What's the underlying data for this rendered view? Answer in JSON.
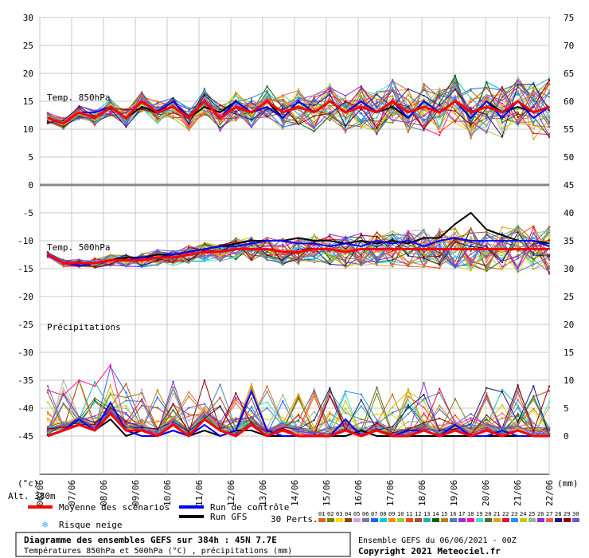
{
  "chart_data": {
    "type": "line",
    "title": "Diagramme des ensembles GEFS sur 384h : 45N 7.7E",
    "subtitle": "Températures 850hPa et 500hPa (°C) , précipitations (mm)",
    "x_unit": "(°c)",
    "x_unit_right": "(mm)",
    "altitude": "Alt. 380m",
    "dates": [
      "06/06",
      "07/06",
      "08/06",
      "09/06",
      "10/06",
      "11/06",
      "12/06",
      "13/06",
      "14/06",
      "15/06",
      "16/06",
      "17/06",
      "18/06",
      "19/06",
      "20/06",
      "21/06",
      "22/06"
    ],
    "left_axis": {
      "ticks": [
        30,
        25,
        20,
        15,
        10,
        5,
        0,
        -5,
        -10,
        -15,
        -20,
        -25,
        -30,
        -35,
        -40,
        -45
      ],
      "range": [
        -45,
        30
      ]
    },
    "right_axis_temp850": {
      "ticks": [
        75,
        70,
        65,
        60,
        55,
        50
      ],
      "range": [
        45,
        75
      ]
    },
    "right_axis_temp500": {
      "ticks": [
        45,
        40,
        35,
        30,
        25
      ],
      "range": [
        20,
        45
      ]
    },
    "right_axis_precip": {
      "ticks": [
        20,
        15,
        10,
        5,
        0
      ],
      "range": [
        0,
        20
      ]
    },
    "panel_labels": {
      "t850": "Temp. 850hPa",
      "t500": "Temp. 500hPa",
      "precip": "Précipitations"
    },
    "series_mean": {
      "name": "Moyenne des scénarios",
      "t850": [
        12,
        11,
        13,
        12,
        14,
        12,
        15,
        13,
        14,
        12,
        15,
        12,
        14,
        13,
        15,
        13,
        14,
        13,
        15,
        13,
        14,
        13,
        15,
        13,
        14,
        13,
        15,
        13,
        14,
        13,
        15,
        13,
        14
      ],
      "t500": [
        -12.5,
        -14,
        -14,
        -14,
        -13.5,
        -13.5,
        -13.5,
        -13,
        -13,
        -12.5,
        -12,
        -12,
        -11.5,
        -11.5,
        -11.5,
        -12,
        -12,
        -11.5,
        -11.5,
        -12,
        -11.5,
        -11.5,
        -11.5,
        -11.5,
        -11.5,
        -11.5,
        -11.5,
        -11.5,
        -11.5,
        -11.5,
        -11.5,
        -11.5,
        -11.5
      ],
      "precip": [
        0,
        1,
        2,
        1,
        4,
        1,
        1,
        0,
        2,
        0,
        3,
        1,
        0,
        2,
        0,
        1,
        0,
        0,
        0,
        1,
        0,
        1,
        0,
        0,
        1,
        0,
        1,
        0,
        1,
        0,
        1,
        0,
        0
      ]
    },
    "series_control": {
      "name": "Run de contrôle",
      "t850": [
        12,
        11,
        13,
        13,
        14,
        12,
        15,
        13,
        15,
        12,
        15,
        12,
        15,
        13,
        14,
        12,
        15,
        13,
        15,
        13,
        15,
        13,
        15,
        12,
        15,
        13,
        15,
        12,
        15,
        12,
        15,
        12,
        14
      ],
      "t500": [
        -12.5,
        -14,
        -14.5,
        -14,
        -13.5,
        -13.5,
        -13,
        -13,
        -12.5,
        -12,
        -11.5,
        -11,
        -11,
        -10.5,
        -10,
        -10,
        -10.5,
        -10.5,
        -11,
        -10.5,
        -11,
        -10,
        -10.5,
        -10,
        -11,
        -10,
        -9.5,
        -10,
        -10,
        -10,
        -10,
        -10,
        -11
      ],
      "precip": [
        0,
        1,
        3,
        1,
        6,
        1,
        0,
        0,
        1,
        0,
        2,
        0,
        1,
        8,
        1,
        0,
        0,
        0,
        0,
        3,
        0,
        1,
        0,
        1,
        1,
        0,
        2,
        0,
        0,
        1,
        0,
        0,
        0
      ]
    },
    "series_gfs": {
      "name": "Run GFS",
      "t850": [
        12,
        11,
        13,
        12,
        14,
        12,
        14,
        13,
        15,
        12,
        14,
        13,
        15,
        13,
        15,
        12,
        15,
        13,
        15,
        13,
        15,
        13,
        14,
        12,
        15,
        13,
        15,
        12,
        15,
        13,
        14,
        13,
        14
      ],
      "t500": [
        -12.5,
        -14,
        -14,
        -14,
        -13.5,
        -13,
        -13,
        -12.5,
        -12.5,
        -12,
        -11.5,
        -11,
        -10.5,
        -10,
        -10,
        -10,
        -9.5,
        -10,
        -10,
        -10.5,
        -10,
        -10.5,
        -10,
        -10.5,
        -9.5,
        -9.5,
        -7,
        -5,
        -8,
        -9,
        -10,
        -10,
        -10.5
      ],
      "precip": [
        0,
        1,
        2,
        1,
        3,
        0,
        1,
        0,
        1,
        0,
        1,
        0,
        1,
        1,
        0,
        0,
        0,
        0,
        0,
        0,
        1,
        0,
        0,
        0,
        0,
        0,
        0,
        0,
        0,
        0,
        0,
        0,
        0
      ]
    },
    "perturbations_label": "30 Perts.",
    "perturbation_numbers": [
      "01",
      "02",
      "03",
      "04",
      "05",
      "06",
      "07",
      "08",
      "09",
      "10",
      "11",
      "12",
      "13",
      "14",
      "15",
      "16",
      "17",
      "18",
      "19",
      "20",
      "21",
      "22",
      "23",
      "24",
      "25",
      "26",
      "27",
      "28",
      "29",
      "30"
    ],
    "perturbation_colors": [
      "#d2691e",
      "#808000",
      "#ffd700",
      "#8b4513",
      "#d8a0e0",
      "#708090",
      "#2060ff",
      "#00ced1",
      "#ff8c00",
      "#9acd32",
      "#ff4500",
      "#a0522d",
      "#20b2aa",
      "#006400",
      "#b8860b",
      "#4682b4",
      "#9932cc",
      "#ff1493",
      "#40e0d0",
      "#556b2f",
      "#daa520",
      "#dc143c",
      "#1e90ff",
      "#c8c800",
      "#8fbc8f",
      "#8a2be2",
      "#ff6347",
      "#191970",
      "#8b0000",
      "#6a5acd"
    ]
  },
  "legend": {
    "mean": "Moyenne des scénarios",
    "control": "Run de contrôle",
    "gfs": "Run GFS",
    "snow": "Risque neige"
  },
  "footer": {
    "title": "Diagramme des ensembles GEFS sur 384h : 45N 7.7E",
    "subtitle": "Températures 850hPa et 500hPa (°C) , précipitations (mm)",
    "ensemble": "Ensemble GEFS du 06/06/2021 - 00Z",
    "copyright": "Copyright 2021 Meteociel.fr"
  },
  "colors": {
    "mean": "#ff0000",
    "control": "#0000ff",
    "gfs": "#000000",
    "snow": "#33aaff"
  }
}
